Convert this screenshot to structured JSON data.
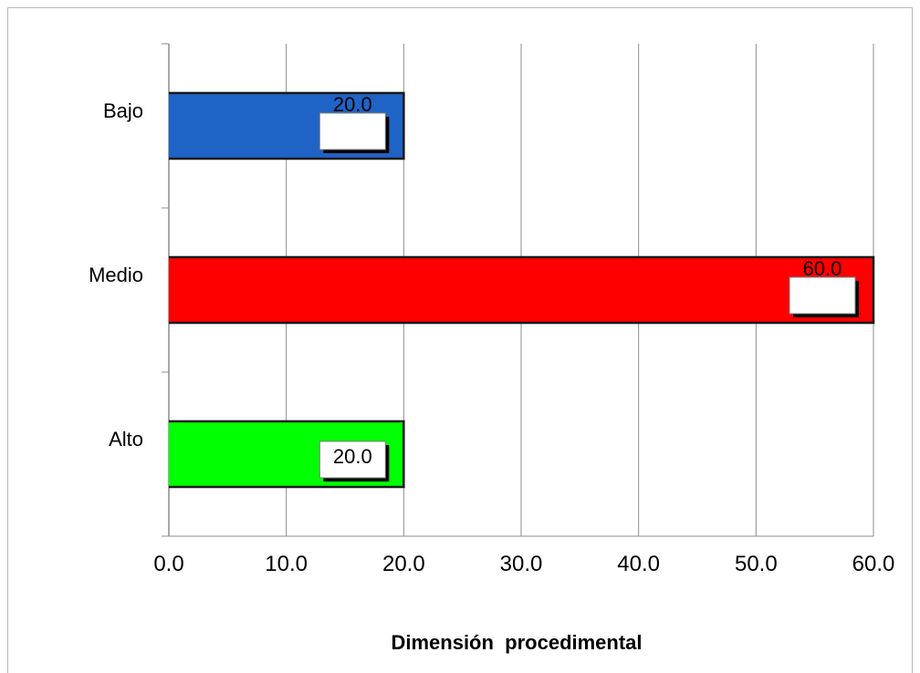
{
  "chart_data": {
    "type": "bar",
    "orientation": "horizontal",
    "categories": [
      "Bajo",
      "Medio",
      "Alto"
    ],
    "values": [
      20.0,
      60.0,
      20.0
    ],
    "bar_colors": [
      "#1f63c6",
      "#ff0000",
      "#00ff00"
    ],
    "data_labels": [
      "20.0",
      "60.0",
      "20.0"
    ],
    "xlabel": "Dimensión  procedimental",
    "ylabel": "",
    "title": "",
    "xlim": [
      0,
      60
    ],
    "x_ticks": [
      0,
      10,
      20,
      30,
      40,
      50,
      60
    ],
    "x_tick_labels": [
      "0.0",
      "10.0",
      "20.0",
      "30.0",
      "40.0",
      "50.0",
      "60.0"
    ],
    "grid": "vertical",
    "legend": "none"
  }
}
